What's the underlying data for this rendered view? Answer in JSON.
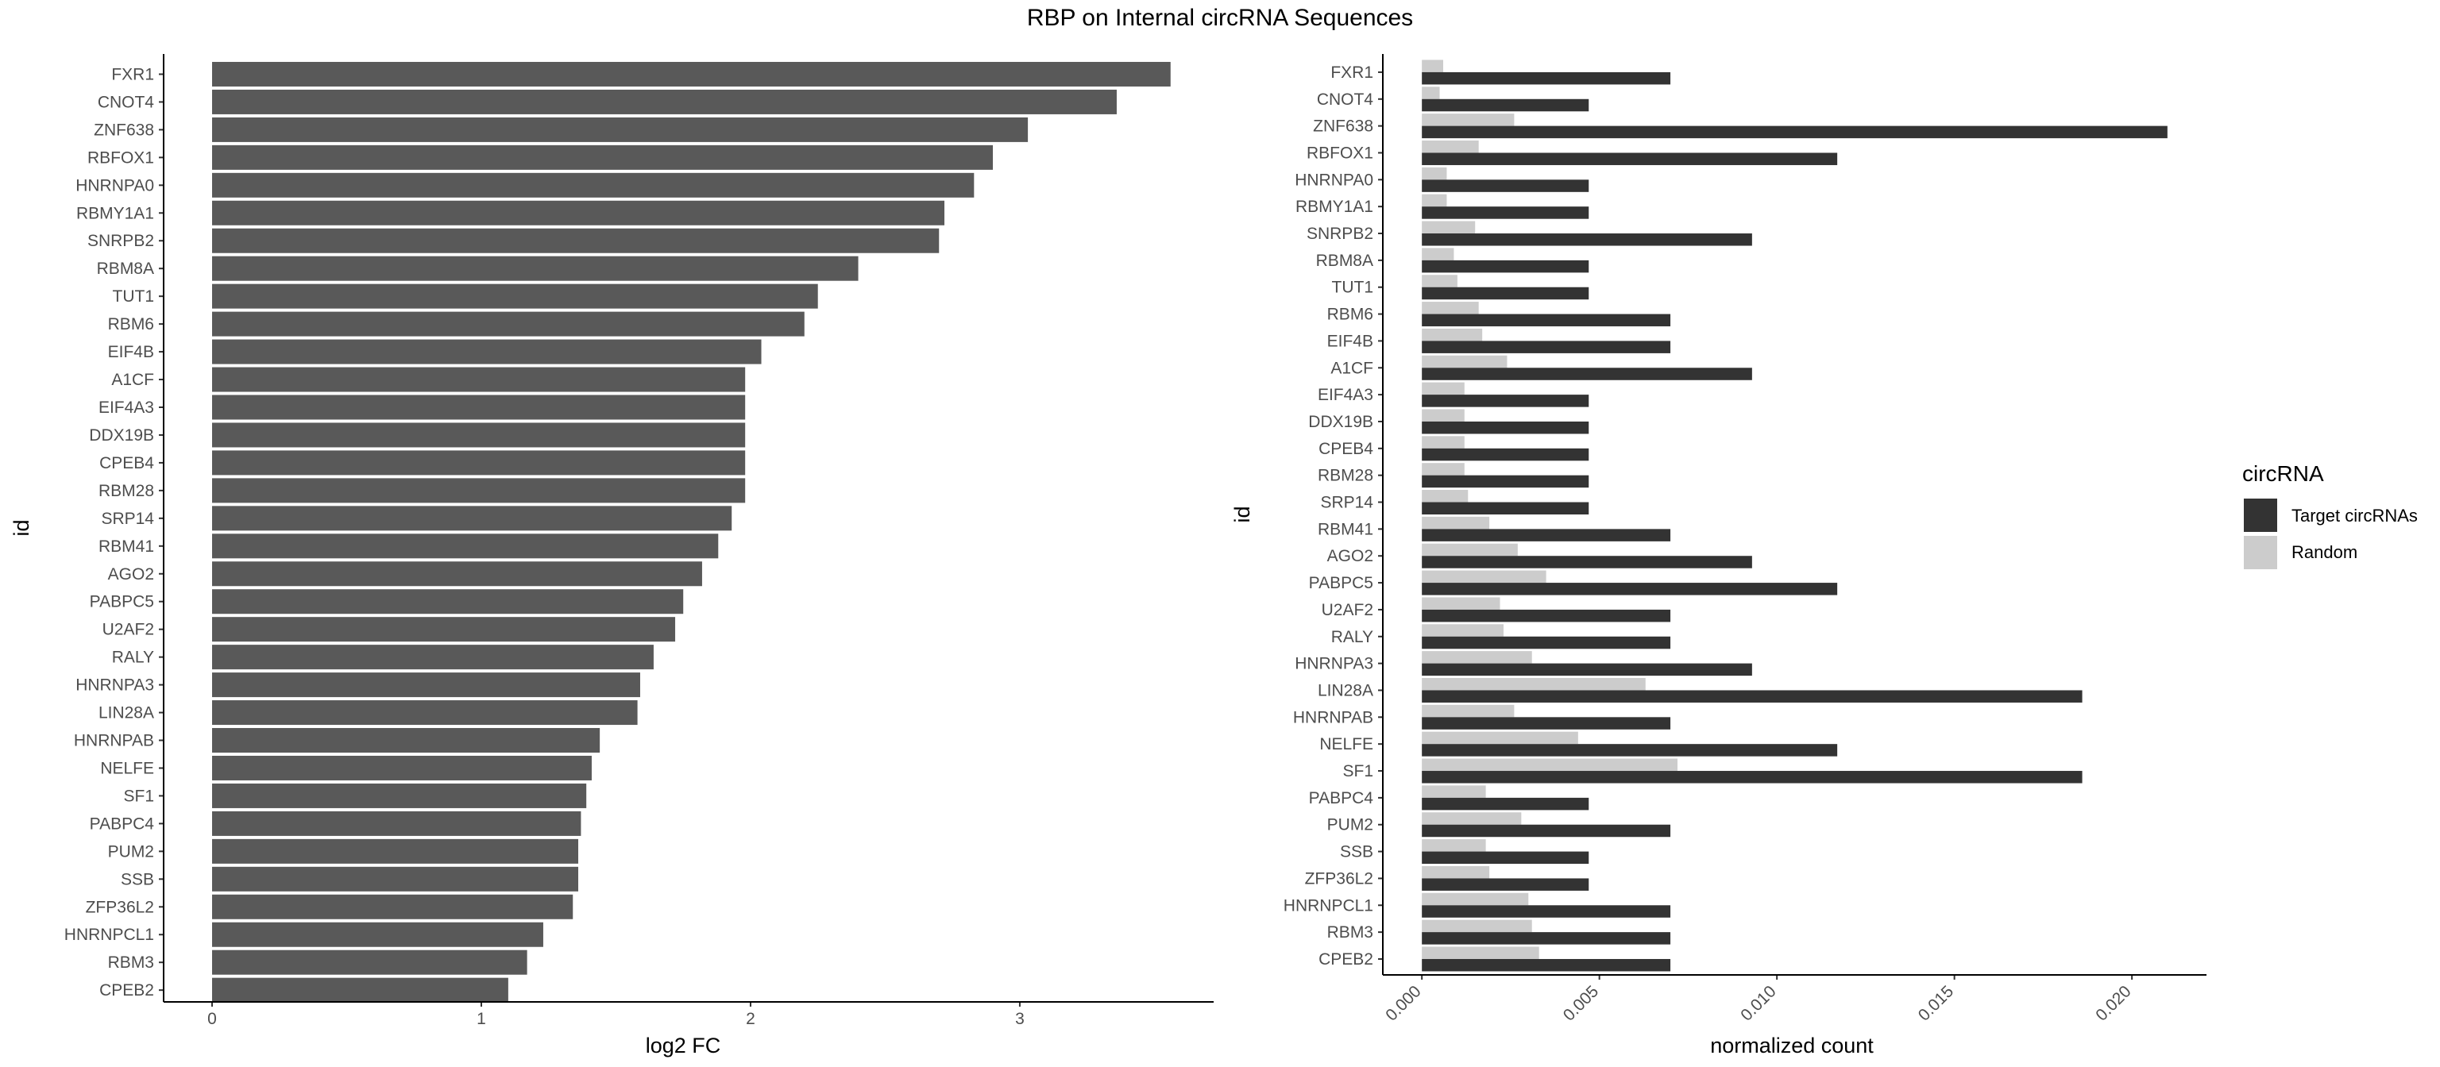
{
  "title": "RBP on Internal circRNA Sequences",
  "colors": {
    "left_bar": "#595959",
    "target": "#333333",
    "random": "#cccccc",
    "axis": "#000000",
    "tick_text": "#4d4d4d"
  },
  "chart_data": [
    {
      "type": "bar",
      "orientation": "horizontal",
      "categories": [
        "FXR1",
        "CNOT4",
        "ZNF638",
        "RBFOX1",
        "HNRNPA0",
        "RBMY1A1",
        "SNRPB2",
        "RBM8A",
        "TUT1",
        "RBM6",
        "EIF4B",
        "A1CF",
        "EIF4A3",
        "DDX19B",
        "CPEB4",
        "RBM28",
        "SRP14",
        "RBM41",
        "AGO2",
        "PABPC5",
        "U2AF2",
        "RALY",
        "HNRNPA3",
        "LIN28A",
        "HNRNPAB",
        "NELFE",
        "SF1",
        "PABPC4",
        "PUM2",
        "SSB",
        "ZFP36L2",
        "HNRNPCL1",
        "RBM3",
        "CPEB2"
      ],
      "values": [
        3.56,
        3.36,
        3.03,
        2.9,
        2.83,
        2.72,
        2.7,
        2.4,
        2.25,
        2.2,
        2.04,
        1.98,
        1.98,
        1.98,
        1.98,
        1.98,
        1.93,
        1.88,
        1.82,
        1.75,
        1.72,
        1.64,
        1.59,
        1.58,
        1.44,
        1.41,
        1.39,
        1.37,
        1.36,
        1.36,
        1.34,
        1.23,
        1.17,
        1.1
      ],
      "xlabel": "log2 FC",
      "ylabel": "id",
      "xlim": [
        -0.18,
        3.72
      ],
      "xticks": [
        "0",
        "1",
        "2",
        "3"
      ],
      "grid": false
    },
    {
      "type": "bar",
      "orientation": "horizontal",
      "position": "dodge",
      "categories": [
        "FXR1",
        "CNOT4",
        "ZNF638",
        "RBFOX1",
        "HNRNPA0",
        "RBMY1A1",
        "SNRPB2",
        "RBM8A",
        "TUT1",
        "RBM6",
        "EIF4B",
        "A1CF",
        "EIF4A3",
        "DDX19B",
        "CPEB4",
        "RBM28",
        "SRP14",
        "RBM41",
        "AGO2",
        "PABPC5",
        "U2AF2",
        "RALY",
        "HNRNPA3",
        "LIN28A",
        "HNRNPAB",
        "NELFE",
        "SF1",
        "PABPC4",
        "PUM2",
        "SSB",
        "ZFP36L2",
        "HNRNPCL1",
        "RBM3",
        "CPEB2"
      ],
      "series": [
        {
          "name": "Target circRNAs",
          "values": [
            0.007,
            0.0047,
            0.021,
            0.0117,
            0.0047,
            0.0047,
            0.0093,
            0.0047,
            0.0047,
            0.007,
            0.007,
            0.0093,
            0.0047,
            0.0047,
            0.0047,
            0.0047,
            0.0047,
            0.007,
            0.0093,
            0.0117,
            0.007,
            0.007,
            0.0093,
            0.0186,
            0.007,
            0.0117,
            0.0186,
            0.0047,
            0.007,
            0.0047,
            0.0047,
            0.007,
            0.007,
            0.007
          ]
        },
        {
          "name": "Random",
          "values": [
            0.0006,
            0.0005,
            0.0026,
            0.0016,
            0.0007,
            0.0007,
            0.0015,
            0.0009,
            0.001,
            0.0016,
            0.0017,
            0.0024,
            0.0012,
            0.0012,
            0.0012,
            0.0012,
            0.0013,
            0.0019,
            0.0027,
            0.0035,
            0.0022,
            0.0023,
            0.0031,
            0.0063,
            0.0026,
            0.0044,
            0.0072,
            0.0018,
            0.0028,
            0.0018,
            0.0019,
            0.003,
            0.0031,
            0.0033
          ]
        }
      ],
      "xlabel": "normalized count",
      "ylabel": "id",
      "xlim": [
        -0.0011,
        0.0221
      ],
      "xticks": [
        "0.000",
        "0.005",
        "0.010",
        "0.015",
        "0.020"
      ],
      "legend": {
        "title": "circRNA",
        "placement": "right"
      },
      "grid": false
    }
  ]
}
